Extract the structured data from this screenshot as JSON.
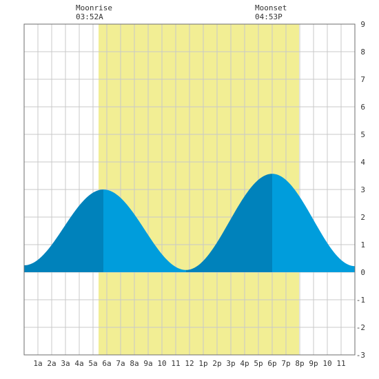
{
  "moon": {
    "rise_title": "Moonrise",
    "rise_time": "03:52A",
    "set_title": "Moonset",
    "set_time": "04:53P"
  },
  "chart_data": {
    "type": "area",
    "title": "",
    "xlabel": "",
    "ylabel": "",
    "xlim": [
      0,
      24
    ],
    "ylim": [
      -3,
      9
    ],
    "grid": true,
    "x_ticks": [
      {
        "x": 1,
        "label": "1a"
      },
      {
        "x": 2,
        "label": "2a"
      },
      {
        "x": 3,
        "label": "3a"
      },
      {
        "x": 4,
        "label": "4a"
      },
      {
        "x": 5,
        "label": "5a"
      },
      {
        "x": 6,
        "label": "6a"
      },
      {
        "x": 7,
        "label": "7a"
      },
      {
        "x": 8,
        "label": "8a"
      },
      {
        "x": 9,
        "label": "9a"
      },
      {
        "x": 10,
        "label": "10"
      },
      {
        "x": 11,
        "label": "11"
      },
      {
        "x": 12,
        "label": "12"
      },
      {
        "x": 13,
        "label": "1p"
      },
      {
        "x": 14,
        "label": "2p"
      },
      {
        "x": 15,
        "label": "3p"
      },
      {
        "x": 16,
        "label": "4p"
      },
      {
        "x": 17,
        "label": "5p"
      },
      {
        "x": 18,
        "label": "6p"
      },
      {
        "x": 19,
        "label": "7p"
      },
      {
        "x": 20,
        "label": "8p"
      },
      {
        "x": 21,
        "label": "9p"
      },
      {
        "x": 22,
        "label": "10"
      },
      {
        "x": 23,
        "label": "11"
      }
    ],
    "y_ticks": [
      -3,
      -2,
      -1,
      0,
      1,
      2,
      3,
      4,
      5,
      6,
      7,
      8,
      9
    ],
    "daylight": {
      "start_hour": 5.4,
      "end_hour": 19.95
    },
    "series": [
      {
        "values": [
          {
            "time": "00:00",
            "hour": 0,
            "height": 0.25
          },
          {
            "time": "05:45",
            "hour": 5.75,
            "height": 3.0
          },
          {
            "time": "11:45",
            "hour": 11.75,
            "height": 0.08
          },
          {
            "time": "18:00",
            "hour": 18.0,
            "height": 3.57
          },
          {
            "time": "24:00",
            "hour": 24,
            "height": 0.22
          }
        ]
      }
    ],
    "colors": {
      "daylight": "#f2ee94",
      "water_rising": "#0082bb",
      "water_falling": "#009ddc",
      "grid": "#c8c8c8",
      "frame": "#6e6e6e"
    }
  }
}
